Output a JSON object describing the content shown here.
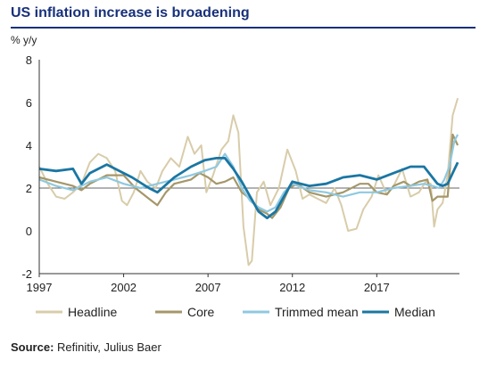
{
  "header": {
    "title": "US inflation increase is broadening"
  },
  "chart_data": {
    "type": "line",
    "ylabel": "% y/y",
    "ylim": [
      -2,
      8
    ],
    "yticks": [
      "8",
      "6",
      "4",
      "2",
      "0",
      "-2"
    ],
    "xlim": [
      1997,
      2021.9
    ],
    "xticks": [
      "1997",
      "2002",
      "2007",
      "2012",
      "2017"
    ],
    "reference_line": 2,
    "legend_position": "bottom",
    "series": [
      {
        "name": "Headline",
        "color": "#d8ccaa",
        "x": [
          1997,
          1997.5,
          1998,
          1998.5,
          1999,
          1999.5,
          2000,
          2000.5,
          2001,
          2001.5,
          2001.9,
          2002.2,
          2002.6,
          2003,
          2003.4,
          2003.9,
          2004.3,
          2004.8,
          2005.3,
          2005.8,
          2006.2,
          2006.6,
          2006.9,
          2007.3,
          2007.8,
          2008.2,
          2008.5,
          2008.8,
          2009.1,
          2009.4,
          2009.6,
          2009.9,
          2010.3,
          2010.7,
          2011.2,
          2011.7,
          2012.2,
          2012.6,
          2013,
          2013.5,
          2014,
          2014.5,
          2014.9,
          2015.3,
          2015.8,
          2016.2,
          2016.7,
          2017.1,
          2017.6,
          2018,
          2018.5,
          2019,
          2019.5,
          2019.9,
          2020.2,
          2020.4,
          2020.6,
          2020.9,
          2021.2,
          2021.5,
          2021.8
        ],
        "values": [
          3.0,
          2.2,
          1.6,
          1.5,
          1.8,
          2.2,
          3.2,
          3.6,
          3.4,
          2.8,
          1.4,
          1.2,
          1.8,
          2.8,
          2.3,
          2.0,
          2.8,
          3.4,
          3.0,
          4.4,
          3.6,
          4.0,
          1.8,
          2.6,
          3.8,
          4.2,
          5.4,
          4.6,
          0.2,
          -1.6,
          -1.4,
          1.8,
          2.3,
          1.2,
          2.0,
          3.8,
          2.8,
          1.5,
          1.7,
          1.5,
          1.3,
          2.0,
          1.2,
          0.0,
          0.1,
          1.0,
          1.6,
          2.6,
          1.7,
          2.1,
          2.9,
          1.6,
          1.8,
          2.3,
          2.2,
          0.2,
          1.0,
          1.3,
          2.6,
          5.4,
          6.2
        ]
      },
      {
        "name": "Core",
        "color": "#a5976a",
        "x": [
          1997,
          1998,
          1999,
          1999.5,
          2000,
          2001,
          2002,
          2002.7,
          2003.5,
          2004,
          2004.5,
          2005,
          2006,
          2006.5,
          2007,
          2007.5,
          2008,
          2008.5,
          2009,
          2009.5,
          2010,
          2010.5,
          2010.8,
          2011.3,
          2011.8,
          2012.3,
          2013,
          2013.5,
          2014,
          2015,
          2016,
          2016.5,
          2017,
          2017.6,
          2018,
          2018.6,
          2019,
          2019.5,
          2020,
          2020.3,
          2020.6,
          2020.9,
          2021.2,
          2021.5,
          2021.8
        ],
        "values": [
          2.5,
          2.3,
          2.1,
          1.9,
          2.2,
          2.6,
          2.6,
          2.0,
          1.5,
          1.2,
          1.8,
          2.2,
          2.4,
          2.7,
          2.5,
          2.2,
          2.3,
          2.5,
          1.8,
          1.5,
          1.0,
          0.8,
          0.6,
          1.1,
          2.0,
          2.2,
          1.8,
          1.7,
          1.6,
          1.8,
          2.2,
          2.2,
          1.8,
          1.7,
          2.1,
          2.3,
          2.1,
          2.3,
          2.4,
          1.4,
          1.6,
          1.6,
          1.6,
          4.5,
          4.0
        ]
      },
      {
        "name": "Trimmed mean",
        "color": "#8fc9e0",
        "x": [
          1997,
          1998,
          1999,
          2000,
          2001,
          2002,
          2003,
          2004,
          2005,
          2006,
          2006.8,
          2007.5,
          2008,
          2008.5,
          2009,
          2009.5,
          2010,
          2010.5,
          2011,
          2011.5,
          2012,
          2013,
          2014,
          2015,
          2016,
          2017,
          2018,
          2019,
          2019.8,
          2020.3,
          2020.7,
          2021,
          2021.3,
          2021.6,
          2021.8
        ],
        "values": [
          2.4,
          2.1,
          1.9,
          2.3,
          2.5,
          2.2,
          2.0,
          2.2,
          2.4,
          2.6,
          2.8,
          3.0,
          3.6,
          3.0,
          2.0,
          1.4,
          1.1,
          0.9,
          1.1,
          1.8,
          2.2,
          1.9,
          1.8,
          1.6,
          1.8,
          1.8,
          2.0,
          2.1,
          2.2,
          2.1,
          2.0,
          2.4,
          3.0,
          4.2,
          4.5
        ]
      },
      {
        "name": "Median",
        "color": "#1a76a3",
        "x": [
          1997,
          1998,
          1999,
          1999.5,
          2000,
          2001,
          2002,
          2002.5,
          2003.5,
          2004,
          2005,
          2006,
          2006.8,
          2007.5,
          2008,
          2008.5,
          2009,
          2009.5,
          2010,
          2010.5,
          2011,
          2012,
          2013,
          2014,
          2015,
          2016,
          2017,
          2018,
          2019,
          2019.8,
          2020.3,
          2020.6,
          2020.9,
          2021.2,
          2021.5,
          2021.8
        ],
        "values": [
          2.9,
          2.8,
          2.9,
          2.2,
          2.7,
          3.1,
          2.7,
          2.5,
          2.0,
          1.8,
          2.5,
          3.0,
          3.3,
          3.4,
          3.4,
          2.9,
          2.3,
          1.6,
          0.9,
          0.6,
          0.9,
          2.3,
          2.1,
          2.2,
          2.5,
          2.6,
          2.4,
          2.7,
          3.0,
          3.0,
          2.5,
          2.2,
          2.1,
          2.2,
          2.7,
          3.2
        ]
      }
    ]
  },
  "footer": {
    "source_label": "Source:",
    "source_text": " Refinitiv, Julius Baer"
  }
}
